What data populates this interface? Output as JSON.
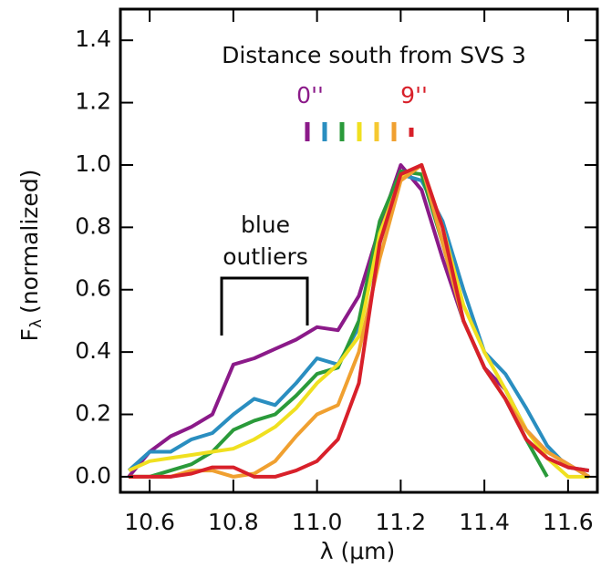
{
  "chart_data": {
    "type": "line",
    "title": "Distance south from SVS 3",
    "annotations": {
      "start": "0''",
      "end": "9''",
      "outliers": [
        "blue",
        "outliers"
      ]
    },
    "x_label": "λ (μm)",
    "y_label": {
      "main": "F",
      "subscript": "λ",
      "rest": "(normalized)"
    },
    "x": [
      10.55,
      10.6,
      10.65,
      10.7,
      10.75,
      10.8,
      10.85,
      10.9,
      10.95,
      11.0,
      11.05,
      11.1,
      11.15,
      11.2,
      11.25,
      11.3,
      11.35,
      11.4,
      11.45,
      11.5,
      11.55,
      11.6,
      11.65
    ],
    "series": [
      {
        "color": "#8b1a89",
        "values": [
          0.0,
          0.08,
          0.13,
          0.16,
          0.2,
          0.36,
          0.38,
          0.41,
          0.44,
          0.48,
          0.47,
          0.58,
          0.8,
          1.0,
          0.92,
          0.7,
          0.5,
          0.35,
          0.28,
          0.15,
          0.08,
          0.04,
          0.0
        ]
      },
      {
        "color": "#2a8ec0",
        "values": [
          0.02,
          0.08,
          0.08,
          0.12,
          0.14,
          0.2,
          0.25,
          0.23,
          0.3,
          0.38,
          0.36,
          0.48,
          0.75,
          0.97,
          0.95,
          0.82,
          0.6,
          0.4,
          0.33,
          0.22,
          0.1,
          0.03,
          0.02
        ]
      },
      {
        "color": "#2a9a3a",
        "values": [
          0.0,
          0.0,
          0.02,
          0.04,
          0.08,
          0.15,
          0.18,
          0.2,
          0.26,
          0.33,
          0.35,
          0.5,
          0.82,
          0.98,
          0.97,
          0.75,
          0.5,
          0.35,
          0.25,
          0.12,
          0.0,
          null,
          null
        ]
      },
      {
        "color": "#f0e020",
        "values": [
          0.02,
          0.05,
          0.06,
          0.07,
          0.08,
          0.09,
          0.12,
          0.16,
          0.22,
          0.3,
          0.36,
          0.45,
          0.78,
          0.96,
          1.0,
          0.8,
          0.55,
          0.4,
          0.28,
          0.15,
          0.06,
          0.0,
          0.0
        ]
      },
      {
        "color": "#f0a030",
        "values": [
          0.0,
          0.0,
          0.0,
          0.02,
          0.02,
          0.0,
          0.01,
          0.05,
          0.13,
          0.2,
          0.23,
          0.4,
          0.7,
          0.95,
          1.0,
          0.75,
          0.5,
          0.35,
          0.25,
          0.15,
          0.08,
          0.04,
          0.0
        ]
      },
      {
        "color": "#d8202a",
        "values": [
          0.0,
          0.0,
          0.0,
          0.01,
          0.03,
          0.03,
          0.0,
          0.0,
          0.02,
          0.05,
          0.12,
          0.3,
          0.75,
          0.97,
          1.0,
          0.8,
          0.5,
          0.35,
          0.25,
          0.12,
          0.06,
          0.03,
          0.02
        ]
      }
    ],
    "xlim": [
      10.53,
      11.67
    ],
    "xticks": [
      10.6,
      10.8,
      {
        "value": 11,
        "label": "11.0"
      },
      11.2,
      11.4,
      11.6
    ],
    "ylim": [
      -0.05,
      1.5
    ],
    "yticks": [
      {
        "value": 0,
        "label": "0.0"
      },
      0.2,
      0.4,
      0.6,
      0.8,
      {
        "value": 1,
        "label": "1.0"
      },
      1.2,
      1.4
    ]
  }
}
